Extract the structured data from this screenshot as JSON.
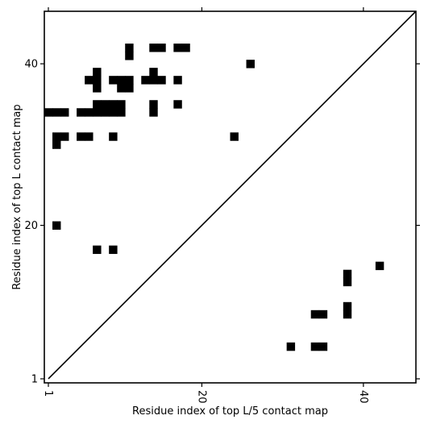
{
  "chart_data": {
    "type": "heatmap",
    "title": "",
    "xlabel": "Residue index of top L/5 contact map",
    "ylabel": "Residue index of top L contact map",
    "xlim": [
      0.5,
      46.5
    ],
    "ylim": [
      0.5,
      46.5
    ],
    "x_ticks": [
      1,
      20,
      40
    ],
    "y_ticks": [
      1,
      20,
      40
    ],
    "diagonal_line": true,
    "grid": false,
    "legend": "none",
    "colors": {
      "cell": "#000000",
      "line": "#000000",
      "background": "#ffffff"
    },
    "upper_cells": [
      [
        1,
        34
      ],
      [
        2,
        34
      ],
      [
        3,
        34
      ],
      [
        2,
        31
      ],
      [
        3,
        31
      ],
      [
        2,
        30
      ],
      [
        5,
        34
      ],
      [
        6,
        34
      ],
      [
        7,
        34
      ],
      [
        7,
        35
      ],
      [
        8,
        34
      ],
      [
        8,
        35
      ],
      [
        5,
        31
      ],
      [
        6,
        31
      ],
      [
        6,
        38
      ],
      [
        7,
        38
      ],
      [
        7,
        39
      ],
      [
        7,
        37
      ],
      [
        9,
        34
      ],
      [
        9,
        35
      ],
      [
        10,
        34
      ],
      [
        10,
        35
      ],
      [
        9,
        38
      ],
      [
        10,
        38
      ],
      [
        10,
        37
      ],
      [
        11,
        38
      ],
      [
        11,
        37
      ],
      [
        11,
        42
      ],
      [
        11,
        41
      ],
      [
        13,
        38
      ],
      [
        14,
        38
      ],
      [
        14,
        39
      ],
      [
        15,
        38
      ],
      [
        14,
        34
      ],
      [
        14,
        35
      ],
      [
        14,
        42
      ],
      [
        15,
        42
      ],
      [
        17,
        42
      ],
      [
        18,
        42
      ],
      [
        17,
        38
      ],
      [
        17,
        35
      ],
      [
        9,
        31
      ],
      [
        24,
        31
      ],
      [
        26,
        40
      ],
      [
        2,
        20
      ],
      [
        7,
        17
      ],
      [
        9,
        17
      ]
    ],
    "lower_cells": [
      [
        38,
        14
      ],
      [
        38,
        13
      ],
      [
        38,
        10
      ],
      [
        38,
        9
      ],
      [
        42,
        15
      ],
      [
        34,
        9
      ],
      [
        35,
        9
      ],
      [
        31,
        5
      ],
      [
        34,
        5
      ],
      [
        35,
        5
      ]
    ]
  }
}
